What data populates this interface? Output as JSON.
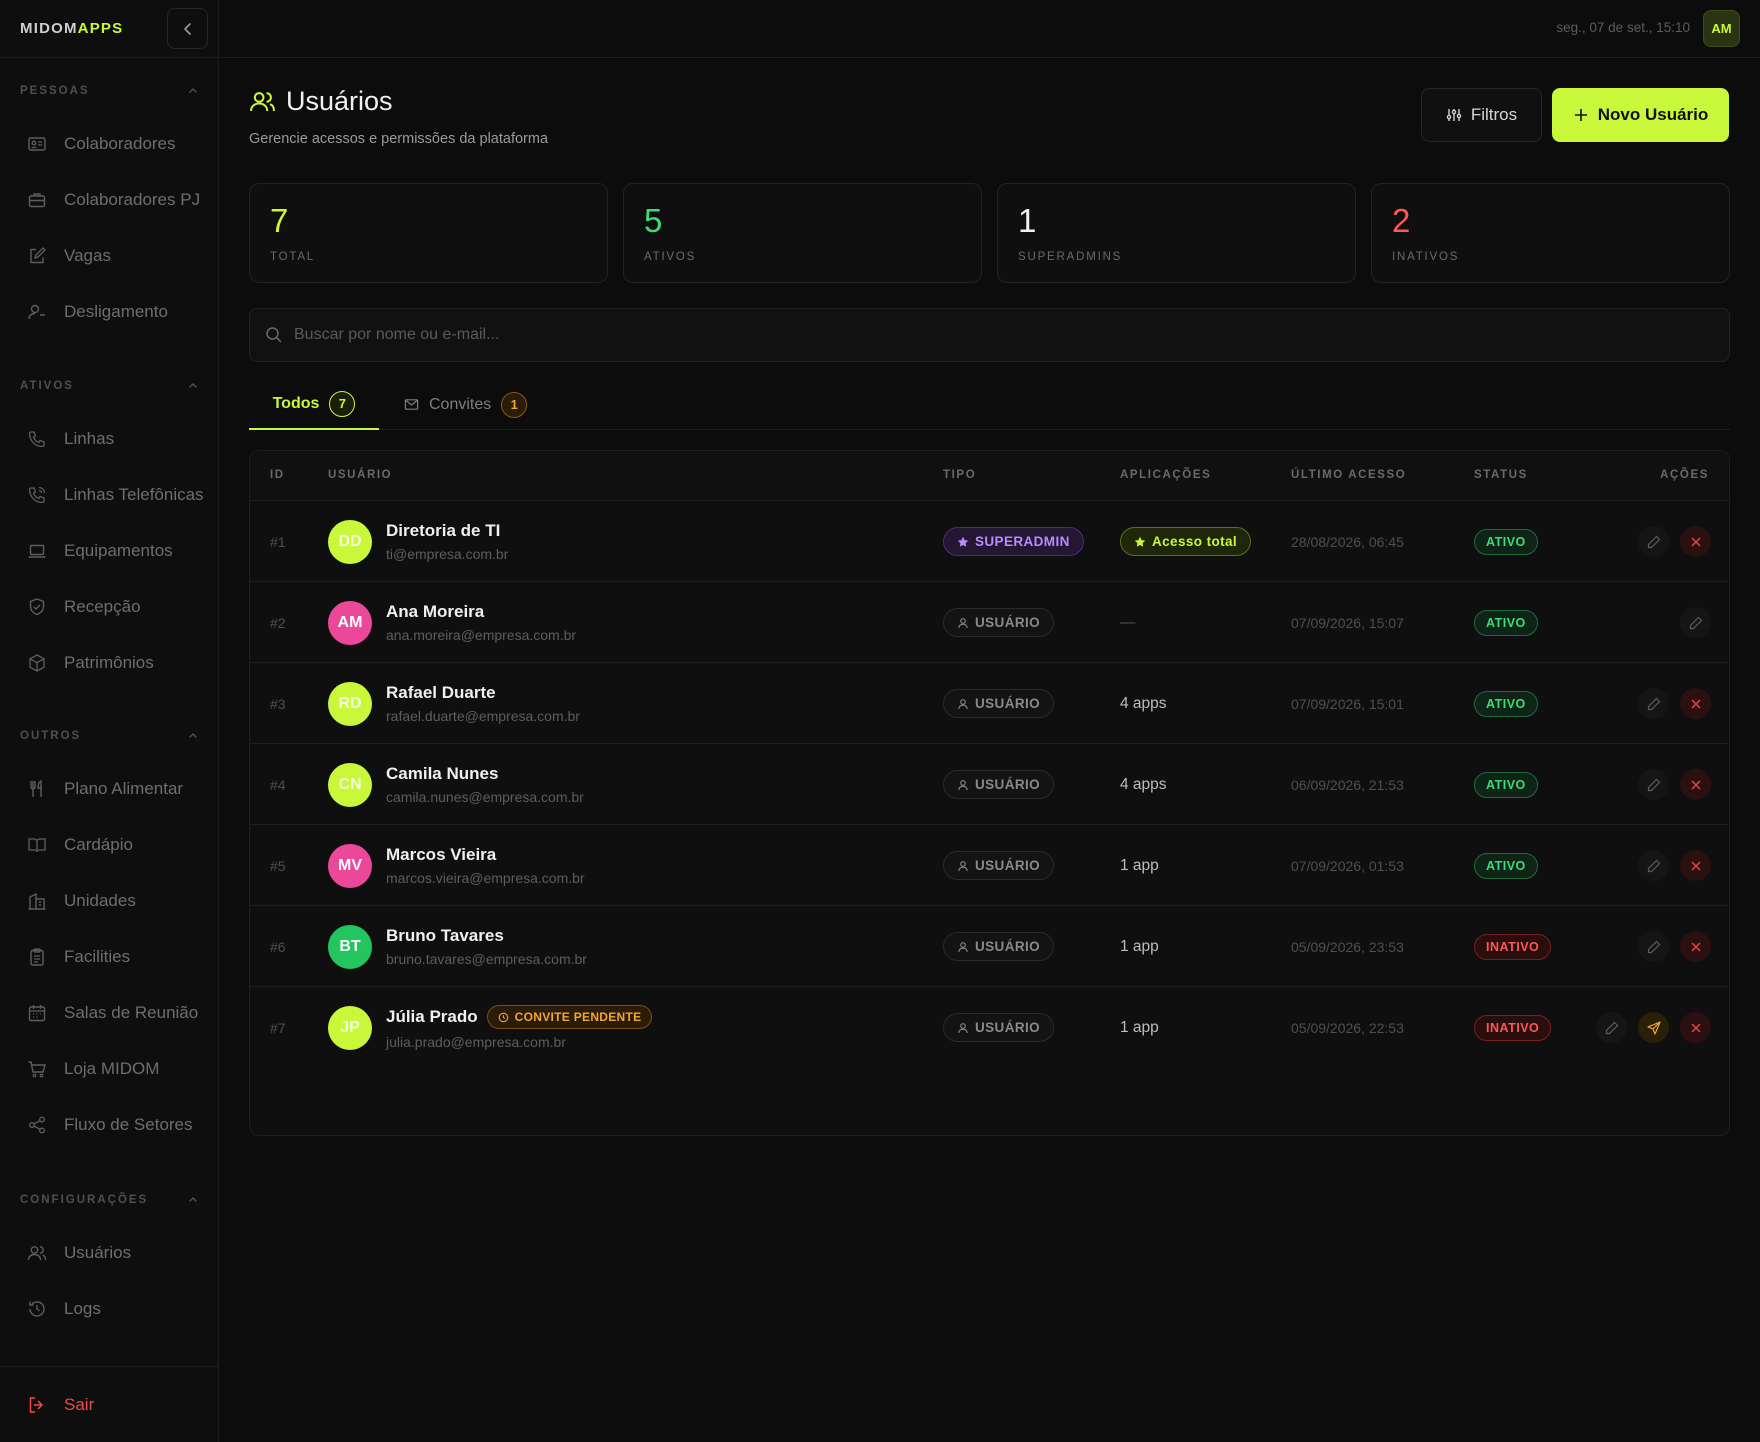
{
  "brand": {
    "part1": "MIDOM",
    "part2": "APPS"
  },
  "topbar": {
    "datetime": "seg., 07 de set., 15:10",
    "avatar_initials": "AM"
  },
  "sidebar": {
    "sections": [
      {
        "title": "PESSOAS",
        "items": [
          "Colaboradores",
          "Colaboradores PJ",
          "Vagas",
          "Desligamento"
        ]
      },
      {
        "title": "ATIVOS",
        "items": [
          "Linhas",
          "Linhas Telefônicas",
          "Equipamentos",
          "Recepção",
          "Patrimônios"
        ]
      },
      {
        "title": "OUTROS",
        "items": [
          "Plano Alimentar",
          "Cardápio",
          "Unidades",
          "Facilities",
          "Salas de Reunião",
          "Loja MIDOM",
          "Fluxo de Setores"
        ]
      },
      {
        "title": "CONFIGURAÇÕES",
        "items": [
          "Usuários",
          "Logs"
        ]
      }
    ],
    "logout": "Sair"
  },
  "header": {
    "title": "Usuários",
    "subtitle": "Gerencie acessos e permissões da plataforma",
    "filter_label": "Filtros",
    "new_label": "Novo Usuário"
  },
  "stats": [
    {
      "value": "7",
      "label": "TOTAL",
      "color": "#c9f73a"
    },
    {
      "value": "5",
      "label": "ATIVOS",
      "color": "#3ddc78"
    },
    {
      "value": "1",
      "label": "SUPERADMINS",
      "color": "#f2f2f2"
    },
    {
      "value": "2",
      "label": "INATIVOS",
      "color": "#ff5757"
    }
  ],
  "search": {
    "placeholder": "Buscar por nome ou e-mail..."
  },
  "tabs": [
    {
      "label": "Todos",
      "count": "7"
    },
    {
      "label": "Convites",
      "count": "1"
    }
  ],
  "table": {
    "headers": {
      "id": "ID",
      "user": "USUÁRIO",
      "type": "TIPO",
      "apps": "APLICAÇÕES",
      "last": "ÚLTIMO ACESSO",
      "status": "STATUS",
      "actions": "AÇÕES"
    },
    "rows": [
      {
        "id": "#1",
        "initials": "DD",
        "avatar_color": "#c9f73a",
        "name": "Diretoria de TI",
        "email": "ti@empresa.com.br",
        "type": "SUPERADMIN",
        "apps": "Acesso total",
        "last": "28/08/2026, 06:45",
        "status": "ATIVO",
        "pending": ""
      },
      {
        "id": "#2",
        "initials": "AM",
        "avatar_color": "#ec4899",
        "name": "Ana Moreira",
        "email": "ana.moreira@empresa.com.br",
        "type": "USUÁRIO",
        "apps": "—",
        "last": "07/09/2026, 15:07",
        "status": "ATIVO",
        "pending": ""
      },
      {
        "id": "#3",
        "initials": "RD",
        "avatar_color": "#c9f73a",
        "name": "Rafael Duarte",
        "email": "rafael.duarte@empresa.com.br",
        "type": "USUÁRIO",
        "apps": "4 apps",
        "last": "07/09/2026, 15:01",
        "status": "ATIVO",
        "pending": ""
      },
      {
        "id": "#4",
        "initials": "CN",
        "avatar_color": "#c9f73a",
        "name": "Camila Nunes",
        "email": "camila.nunes@empresa.com.br",
        "type": "USUÁRIO",
        "apps": "4 apps",
        "last": "06/09/2026, 21:53",
        "status": "ATIVO",
        "pending": ""
      },
      {
        "id": "#5",
        "initials": "MV",
        "avatar_color": "#ec4899",
        "name": "Marcos Vieira",
        "email": "marcos.vieira@empresa.com.br",
        "type": "USUÁRIO",
        "apps": "1 app",
        "last": "07/09/2026, 01:53",
        "status": "ATIVO",
        "pending": ""
      },
      {
        "id": "#6",
        "initials": "BT",
        "avatar_color": "#22c55e",
        "name": "Bruno Tavares",
        "email": "bruno.tavares@empresa.com.br",
        "type": "USUÁRIO",
        "apps": "1 app",
        "last": "05/09/2026, 23:53",
        "status": "INATIVO",
        "pending": ""
      },
      {
        "id": "#7",
        "initials": "JP",
        "avatar_color": "#c9f73a",
        "name": "Júlia Prado",
        "email": "julia.prado@empresa.com.br",
        "type": "USUÁRIO",
        "apps": "1 app",
        "last": "05/09/2026, 22:53",
        "status": "INATIVO",
        "pending": "CONVITE PENDENTE"
      }
    ]
  }
}
